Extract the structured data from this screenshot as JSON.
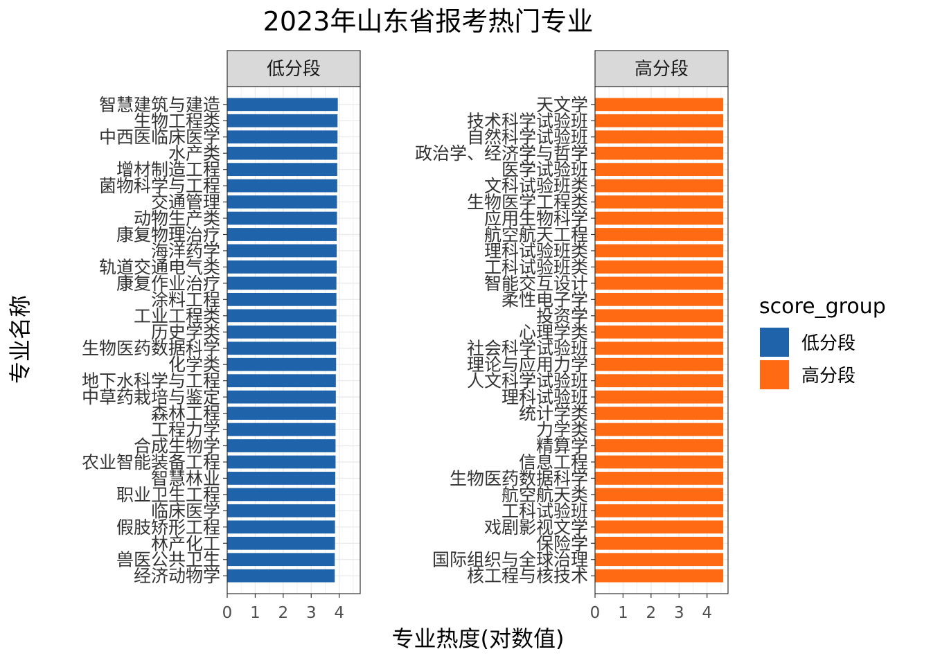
{
  "chart_data": {
    "type": "bar",
    "orientation": "horizontal",
    "title": "2023年山东省报考热门专业",
    "xlabel": "专业热度(对数值)",
    "ylabel": "专业名称",
    "xlim": [
      0,
      4.75
    ],
    "xticks": [
      "0",
      "1",
      "2",
      "3",
      "4"
    ],
    "legend": {
      "title": "score_group",
      "position": "right",
      "entries": [
        {
          "label": "低分段",
          "color": "#1f63aa"
        },
        {
          "label": "高分段",
          "color": "#ff6a13"
        }
      ]
    },
    "panels": [
      {
        "name": "低分段",
        "color": "#1f63aa",
        "categories": [
          "智慧建筑与建造",
          "生物工程类",
          "中西医临床医学",
          "水产类",
          "增材制造工程",
          "菌物科学与工程",
          "交通管理",
          "动物生产类",
          "康复物理治疗",
          "海洋药学",
          "轨道交通电气类",
          "康复作业治疗",
          "涂料工程",
          "工业工程类",
          "历史学类",
          "生物医药数据科学",
          "化学类",
          "地下水科学与工程",
          "中草药栽培与鉴定",
          "森林工程",
          "工程力学",
          "合成生物学",
          "农业智能装备工程",
          "智慧林业",
          "职业卫生工程",
          "临床医学",
          "假肢矫形工程",
          "林产化工",
          "兽医公共卫生",
          "经济动物学"
        ],
        "values": [
          3.95,
          3.94,
          3.94,
          3.93,
          3.93,
          3.93,
          3.92,
          3.92,
          3.91,
          3.91,
          3.91,
          3.9,
          3.9,
          3.9,
          3.89,
          3.89,
          3.89,
          3.88,
          3.88,
          3.88,
          3.87,
          3.87,
          3.87,
          3.86,
          3.86,
          3.86,
          3.85,
          3.85,
          3.84,
          3.84
        ]
      },
      {
        "name": "高分段",
        "color": "#ff6a13",
        "categories": [
          "天文学",
          "技术科学试验班",
          "自然科学试验班",
          "政治学、经济学与哲学",
          "医学试验班",
          "文科试验班类",
          "生物医学工程类",
          "应用生物科学",
          "航空航天工程",
          "理科试验班类",
          "工科试验班类",
          "智能交互设计",
          "柔性电子学",
          "投资学",
          "心理学类",
          "社会科学试验班",
          "理论与应用力学",
          "人文科学试验班",
          "理科试验班",
          "统计学类",
          "力学类",
          "精算学",
          "信息工程",
          "生物医药数据科学",
          "航空航天类",
          "工科试验班",
          "戏剧影视文学",
          "保险学",
          "国际组织与全球治理",
          "核工程与核技术"
        ],
        "values": [
          4.58,
          4.58,
          4.58,
          4.58,
          4.58,
          4.58,
          4.58,
          4.58,
          4.58,
          4.58,
          4.58,
          4.58,
          4.58,
          4.58,
          4.58,
          4.58,
          4.58,
          4.58,
          4.58,
          4.58,
          4.58,
          4.58,
          4.58,
          4.58,
          4.58,
          4.58,
          4.58,
          4.58,
          4.58,
          4.58
        ]
      }
    ]
  }
}
